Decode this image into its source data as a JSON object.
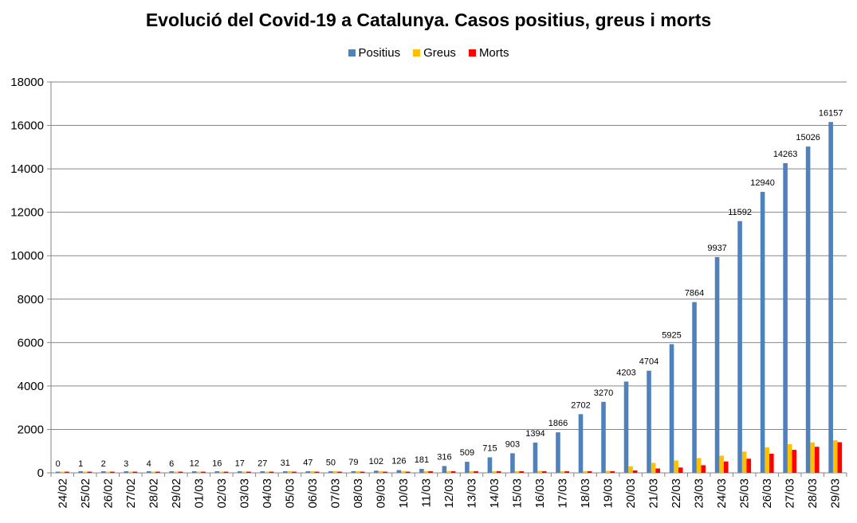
{
  "chart_data": {
    "type": "bar",
    "title": "Evolució del Covid-19 a Catalunya. Casos positius, greus i morts",
    "xlabel": "",
    "ylabel": "",
    "ylim": [
      0,
      18000
    ],
    "y_ticks": [
      0,
      2000,
      4000,
      6000,
      8000,
      10000,
      12000,
      14000,
      16000,
      18000
    ],
    "grid": true,
    "legend_position": "top",
    "categories": [
      "24/02",
      "25/02",
      "26/02",
      "27/02",
      "28/02",
      "29/02",
      "01/03",
      "02/03",
      "03/03",
      "04/03",
      "05/03",
      "06/03",
      "07/03",
      "08/03",
      "09/03",
      "10/03",
      "11/03",
      "12/03",
      "13/03",
      "14/03",
      "15/03",
      "16/03",
      "17/03",
      "18/03",
      "19/03",
      "20/03",
      "21/03",
      "22/03",
      "23/03",
      "24/03",
      "25/03",
      "26/03",
      "27/03",
      "28/03",
      "29/03"
    ],
    "series": [
      {
        "name": "Positius",
        "color": "#4F81BD",
        "values": [
          0,
          1,
          2,
          3,
          4,
          6,
          12,
          16,
          17,
          27,
          31,
          47,
          50,
          79,
          102,
          126,
          181,
          316,
          509,
          715,
          903,
          1394,
          1866,
          2702,
          3270,
          4203,
          4704,
          5925,
          7864,
          9937,
          11592,
          12940,
          14263,
          15026,
          16157
        ],
        "labels": [
          "0",
          "1",
          "2",
          "3",
          "4",
          "6",
          "12",
          "16",
          "17",
          "27",
          "31",
          "47",
          "50",
          "79",
          "102",
          "126",
          "181",
          "316",
          "509",
          "715",
          "903",
          "1394",
          "1866",
          "2702",
          "3270",
          "4203",
          "4704",
          "5925",
          "7864",
          "9937",
          "11592",
          "12940",
          "14263",
          "15026",
          "16157"
        ]
      },
      {
        "name": "Greus",
        "color": "#FFC000",
        "values": [
          0,
          0,
          0,
          0,
          0,
          0,
          0,
          0,
          0,
          0,
          10,
          20,
          25,
          30,
          35,
          40,
          40,
          40,
          40,
          40,
          40,
          90,
          30,
          80,
          90,
          300,
          460,
          570,
          680,
          790,
          980,
          1170,
          1320,
          1400,
          1500
        ]
      },
      {
        "name": "Morts",
        "color": "#FF0000",
        "values": [
          0,
          0,
          0,
          0,
          0,
          0,
          0,
          0,
          0,
          0,
          0,
          0,
          0,
          0,
          0,
          0,
          5,
          5,
          5,
          5,
          10,
          20,
          25,
          40,
          70,
          110,
          200,
          245,
          350,
          525,
          650,
          880,
          1060,
          1200,
          1410
        ]
      }
    ]
  }
}
